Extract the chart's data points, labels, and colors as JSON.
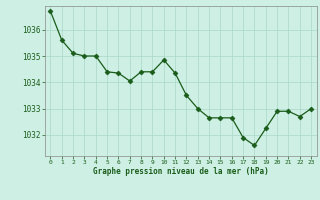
{
  "x": [
    0,
    1,
    2,
    3,
    4,
    5,
    6,
    7,
    8,
    9,
    10,
    11,
    12,
    13,
    14,
    15,
    16,
    17,
    18,
    19,
    20,
    21,
    22,
    23
  ],
  "y": [
    1036.7,
    1035.6,
    1035.1,
    1035.0,
    1035.0,
    1034.4,
    1034.35,
    1034.05,
    1034.4,
    1034.4,
    1034.85,
    1034.35,
    1033.5,
    1033.0,
    1032.65,
    1032.65,
    1032.65,
    1031.9,
    1031.6,
    1032.25,
    1032.9,
    1032.9,
    1032.7,
    1033.0
  ],
  "line_color": "#1a5c1a",
  "marker": "D",
  "marker_size": 2.5,
  "bg_color": "#cef0e4",
  "grid_color": "#aad8c8",
  "xlabel": "Graphe pression niveau de la mer (hPa)",
  "xlabel_color": "#1a5c1a",
  "tick_color": "#1a5c1a",
  "ylabel_ticks": [
    1032,
    1033,
    1034,
    1035,
    1036
  ],
  "ylim": [
    1031.2,
    1036.9
  ],
  "xlim": [
    -0.5,
    23.5
  ],
  "xticks": [
    0,
    1,
    2,
    3,
    4,
    5,
    6,
    7,
    8,
    9,
    10,
    11,
    12,
    13,
    14,
    15,
    16,
    17,
    18,
    19,
    20,
    21,
    22,
    23
  ]
}
